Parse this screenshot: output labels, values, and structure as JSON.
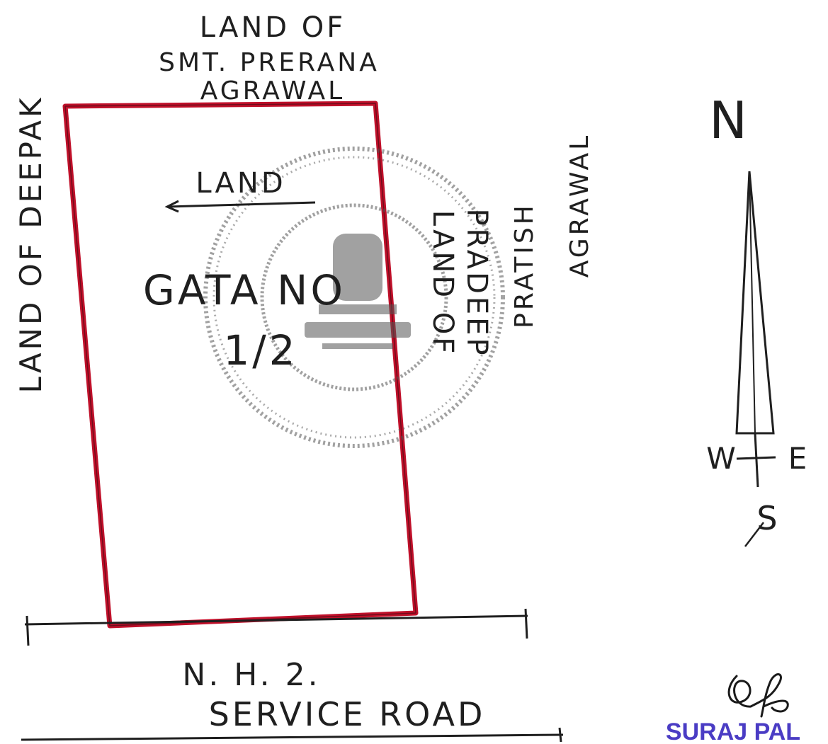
{
  "plan": {
    "north_neighbor": [
      "LAND OF",
      "SMT. PRERANA",
      "AGRAWAL"
    ],
    "west_neighbor": "LAND OF DEEPAK",
    "east_neighbor_a": [
      "LAND OF",
      "PRADEEP"
    ],
    "east_neighbor_b": [
      "PRATISH",
      "AGRAWAL"
    ],
    "plot_label_top": "LAND",
    "plot_label": [
      "GATA NO",
      "1/2"
    ],
    "south_road": [
      "N. H. 2.",
      "SERVICE ROAD"
    ]
  },
  "compass": {
    "north": "N",
    "west": "W",
    "east": "E",
    "south": "S"
  },
  "signature": {
    "name": "SURAJ PAL"
  },
  "colors": {
    "plot_border": "#c0102a",
    "ink": "#1f1f1f",
    "stamp_ink": "#4a4a4a",
    "signature_stamp": "#4a3cc4"
  }
}
